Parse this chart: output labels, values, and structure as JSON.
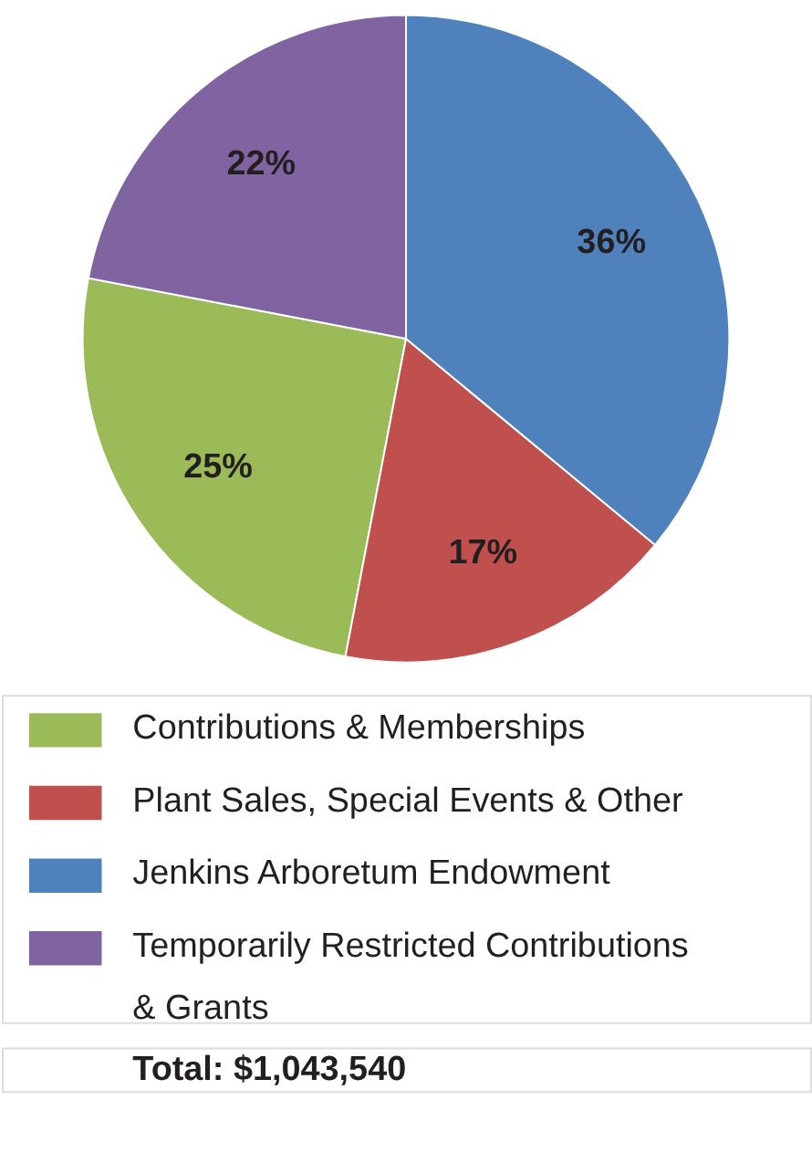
{
  "chart_data": {
    "type": "pie",
    "categories": [
      "Contributions & Memberships",
      "Plant Sales, Special Events & Other",
      "Jenkins Arboretum Endowment",
      "Temporarily Restricted Contributions & Grants"
    ],
    "values": [
      25,
      17,
      36,
      22
    ],
    "colors": [
      "#9bbb59",
      "#c0504d",
      "#4f81bd",
      "#8064a2"
    ],
    "value_labels": [
      "25%",
      "17%",
      "36%",
      "22%"
    ],
    "legend": "bottom",
    "annotations": [
      "Total: $1,043,540"
    ]
  }
}
